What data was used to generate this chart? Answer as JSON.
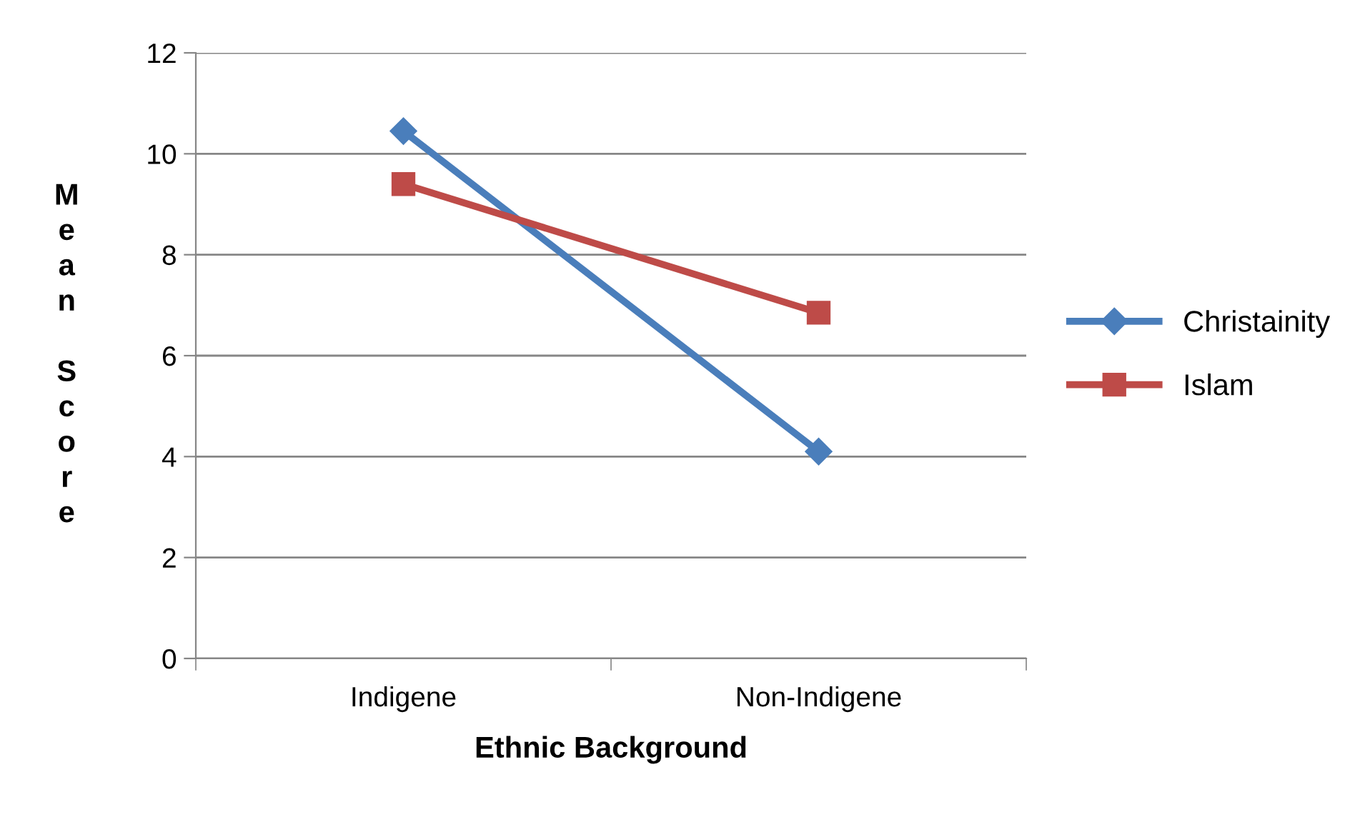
{
  "chart_data": {
    "type": "line",
    "xlabel": "Ethnic Background",
    "ylabel": "Mean Score",
    "categories": [
      "Indigene",
      "Non-Indigene"
    ],
    "series": [
      {
        "name": "Christainity",
        "color": "#4a7ebb",
        "values": [
          10.45,
          4.1
        ],
        "marker": "diamond"
      },
      {
        "name": "Islam",
        "color": "#be4b48",
        "values": [
          9.4,
          6.85
        ],
        "marker": "square"
      }
    ],
    "ylim": [
      0,
      12
    ],
    "yticks": [
      0,
      2,
      4,
      6,
      8,
      10,
      12
    ],
    "grid": "y",
    "legend": "right",
    "line_style": "solid"
  }
}
